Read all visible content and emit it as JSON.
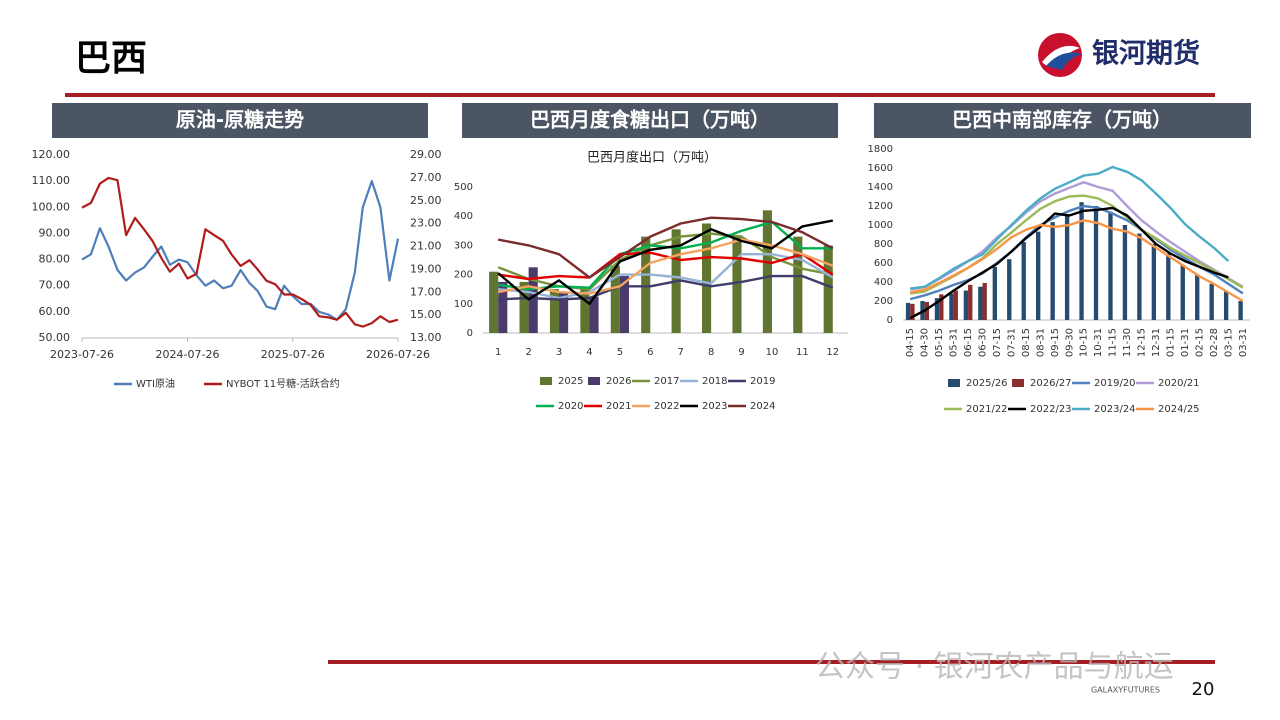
{
  "page": {
    "title": "巴西",
    "logo": "银河期货",
    "brand": "GALAXYFUTURES",
    "page_number": 20,
    "watermark": "公众号 · 银河农产品与航运"
  },
  "chart_data": [
    {
      "type": "line",
      "title": "原油-原糖走势",
      "x": [
        "2023-07-26",
        "2023-08-26",
        "2023-09-26",
        "2023-10-26",
        "2023-11-26",
        "2023-12-26",
        "2024-01-26",
        "2024-02-26",
        "2024-03-26",
        "2024-04-26",
        "2024-05-26",
        "2024-06-26",
        "2024-07-26",
        "2024-08-26",
        "2024-09-26",
        "2024-10-26",
        "2024-11-26",
        "2024-12-26",
        "2025-01-26",
        "2025-02-26",
        "2025-03-26",
        "2025-04-26",
        "2025-05-26",
        "2025-06-26",
        "2025-07-26",
        "2025-08-26",
        "2025-09-26",
        "2025-10-26",
        "2025-11-26",
        "2025-12-26",
        "2026-01-26",
        "2026-02-26",
        "2026-03-26",
        "2026-04-26",
        "2026-05-26",
        "2026-06-26",
        "2026-07-26"
      ],
      "xlim": [
        "2023-07-26",
        "2026-07-26"
      ],
      "xticks": [
        "2023-07-26",
        "2024-07-26",
        "2025-07-26",
        "2026-07-26"
      ],
      "ylim": [
        50,
        120
      ],
      "yticks": [
        {
          "value": 50,
          "label": "50.00"
        },
        {
          "value": 60,
          "label": "60.00"
        },
        {
          "value": 70,
          "label": "70.00"
        },
        {
          "value": 80,
          "label": "80.00"
        },
        {
          "value": 90,
          "label": "90.00"
        },
        {
          "value": 100,
          "label": "100.00"
        },
        {
          "value": 110,
          "label": "110.00"
        },
        {
          "value": 120,
          "label": "120.00"
        }
      ],
      "y2lim": [
        13,
        29
      ],
      "y2ticks": [
        {
          "value": 13,
          "label": "13.00"
        },
        {
          "value": 15,
          "label": "15.00"
        },
        {
          "value": 17,
          "label": "17.00"
        },
        {
          "value": 19,
          "label": "19.00"
        },
        {
          "value": 21,
          "label": "21.00"
        },
        {
          "value": 23,
          "label": "23.00"
        },
        {
          "value": 25,
          "label": "25.00"
        },
        {
          "value": 27,
          "label": "27.00"
        },
        {
          "value": 29,
          "label": "29.00"
        }
      ],
      "series": [
        {
          "name": "WTI原油",
          "color": "#4f7fb8",
          "values": [
            80,
            82,
            92,
            85,
            76,
            72,
            75,
            77,
            81,
            85,
            78,
            80,
            79,
            74,
            70,
            72,
            69,
            70,
            76,
            71,
            68,
            62,
            61,
            70,
            66,
            63,
            63,
            60,
            59,
            57,
            61,
            75,
            100,
            110,
            100,
            72,
            88
          ]
        },
        {
          "name": "NYBOT 11号糖-活跃合约",
          "color": "#b01c1c",
          "axis": "y2",
          "values": [
            24.4,
            24.8,
            26.5,
            27.0,
            26.8,
            22.0,
            23.5,
            22.5,
            21.5,
            20.0,
            18.8,
            19.5,
            18.2,
            18.6,
            22.5,
            22.0,
            21.5,
            20.3,
            19.3,
            19.8,
            19.0,
            18.0,
            17.7,
            16.8,
            16.8,
            16.4,
            15.9,
            14.9,
            14.8,
            14.6,
            15.2,
            14.2,
            14.0,
            14.3,
            14.9,
            14.4,
            14.6
          ]
        }
      ]
    },
    {
      "type": "combo",
      "title": "巴西月度食糖出口（万吨）",
      "subtitle": "巴西月度出口（万吨）",
      "categories": [
        1,
        2,
        3,
        4,
        5,
        6,
        7,
        8,
        9,
        10,
        11,
        12
      ],
      "ylim": [
        0,
        500
      ],
      "yticks": [
        0,
        100,
        200,
        300,
        400,
        500
      ],
      "series": [
        {
          "name": "2025",
          "type": "bar",
          "color": "#5f7530",
          "values": [
            210,
            175,
            150,
            155,
            230,
            330,
            355,
            375,
            330,
            420,
            330,
            300
          ]
        },
        {
          "name": "2026",
          "type": "bar",
          "color": "#4b3b6b",
          "values": [
            175,
            225,
            140,
            125,
            195,
            null,
            null,
            null,
            null,
            null,
            null,
            null
          ]
        },
        {
          "name": "2017",
          "type": "line",
          "color": "#77933c",
          "values": [
            225,
            185,
            160,
            150,
            250,
            300,
            330,
            340,
            330,
            260,
            220,
            200
          ]
        },
        {
          "name": "2018",
          "type": "line",
          "color": "#95b3d7",
          "values": [
            150,
            140,
            120,
            140,
            200,
            200,
            190,
            170,
            270,
            270,
            250,
            190
          ]
        },
        {
          "name": "2019",
          "type": "line",
          "color": "#403d6b",
          "values": [
            115,
            120,
            115,
            120,
            160,
            160,
            180,
            160,
            175,
            195,
            195,
            155
          ]
        },
        {
          "name": "2020",
          "type": "line",
          "color": "#00b050",
          "values": [
            165,
            150,
            160,
            155,
            270,
            300,
            290,
            310,
            350,
            380,
            290,
            290
          ]
        },
        {
          "name": "2021",
          "type": "line",
          "color": "#e00000",
          "values": [
            200,
            185,
            195,
            190,
            270,
            275,
            250,
            260,
            255,
            240,
            270,
            200
          ]
        },
        {
          "name": "2022",
          "type": "line",
          "color": "#f4a460",
          "values": [
            140,
            160,
            140,
            135,
            160,
            240,
            270,
            290,
            320,
            300,
            270,
            230
          ]
        },
        {
          "name": "2023",
          "type": "line",
          "color": "#000000",
          "values": [
            205,
            115,
            180,
            100,
            245,
            285,
            300,
            355,
            315,
            290,
            365,
            385
          ]
        },
        {
          "name": "2024",
          "type": "line",
          "color": "#7b2c2c",
          "values": [
            320,
            300,
            270,
            190,
            260,
            330,
            375,
            395,
            390,
            380,
            345,
            290
          ]
        }
      ]
    },
    {
      "type": "combo",
      "title": "巴西中南部库存（万吨）",
      "categories": [
        "04-15",
        "04-30",
        "05-15",
        "05-31",
        "06-15",
        "06-30",
        "07-15",
        "07-31",
        "08-15",
        "08-31",
        "09-15",
        "09-30",
        "10-15",
        "10-31",
        "11-15",
        "11-30",
        "12-15",
        "12-31",
        "01-15",
        "01-31",
        "02-15",
        "02-28",
        "03-15",
        "03-31"
      ],
      "ylim": [
        0,
        1800
      ],
      "yticks": [
        0,
        200,
        400,
        600,
        800,
        1000,
        1200,
        1400,
        1600,
        1800
      ],
      "series": [
        {
          "name": "2025/26",
          "type": "bar",
          "color": "#264b6e",
          "values": [
            180,
            200,
            230,
            280,
            310,
            350,
            560,
            640,
            820,
            930,
            1030,
            1110,
            1240,
            1200,
            1140,
            1000,
            910,
            800,
            700,
            580,
            480,
            380,
            300,
            200
          ]
        },
        {
          "name": "2026/27",
          "type": "bar",
          "color": "#8b2e2e",
          "values": [
            170,
            190,
            270,
            310,
            370,
            390,
            null,
            null,
            null,
            null,
            null,
            null,
            null,
            null,
            null,
            null,
            null,
            null,
            null,
            null,
            null,
            null,
            null,
            null
          ]
        },
        {
          "name": "2019/20",
          "type": "line",
          "color": "#4f81bd",
          "values": [
            220,
            260,
            310,
            370,
            420,
            490,
            600,
            720,
            870,
            1000,
            1080,
            1150,
            1200,
            1180,
            1120,
            1050,
            950,
            850,
            740,
            650,
            560,
            480,
            380,
            280
          ]
        },
        {
          "name": "2020/21",
          "type": "line",
          "color": "#b19cd9",
          "values": [
            320,
            350,
            430,
            520,
            620,
            720,
            870,
            990,
            1130,
            1250,
            1330,
            1390,
            1450,
            1400,
            1360,
            1200,
            1050,
            930,
            820,
            720,
            620,
            530,
            440,
            350
          ]
        },
        {
          "name": "2021/22",
          "type": "line",
          "color": "#9bbb59",
          "values": [
            280,
            300,
            380,
            460,
            550,
            650,
            800,
            920,
            1050,
            1170,
            1250,
            1300,
            1310,
            1280,
            1200,
            1080,
            950,
            860,
            760,
            680,
            600,
            520,
            430,
            340
          ]
        },
        {
          "name": "2022/23",
          "type": "line",
          "color": "#000000",
          "values": [
            20,
            100,
            200,
            310,
            410,
            500,
            590,
            720,
            860,
            980,
            1120,
            1100,
            1150,
            1160,
            1180,
            1100,
            950,
            800,
            700,
            620,
            560,
            500,
            450,
            null
          ]
        },
        {
          "name": "2023/24",
          "type": "line",
          "color": "#4bacc6",
          "values": [
            330,
            350,
            440,
            540,
            620,
            690,
            850,
            1000,
            1150,
            1280,
            1380,
            1450,
            1520,
            1540,
            1610,
            1560,
            1470,
            1330,
            1180,
            1010,
            880,
            760,
            620,
            null
          ]
        },
        {
          "name": "2024/25",
          "type": "line",
          "color": "#f79646",
          "values": [
            290,
            320,
            390,
            470,
            550,
            640,
            750,
            870,
            950,
            1000,
            980,
            1000,
            1050,
            1020,
            960,
            930,
            860,
            760,
            660,
            560,
            460,
            380,
            290,
            200
          ]
        }
      ]
    }
  ]
}
